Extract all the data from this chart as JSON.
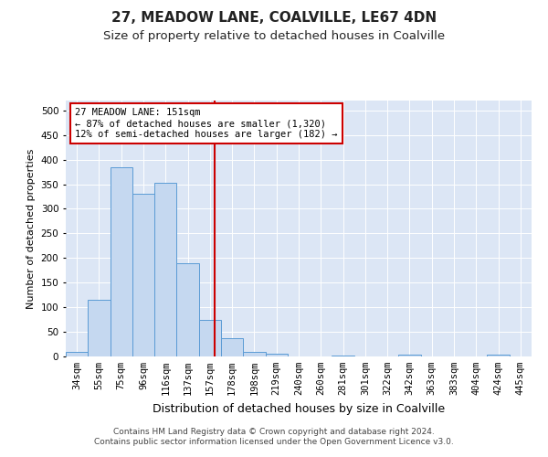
{
  "title1": "27, MEADOW LANE, COALVILLE, LE67 4DN",
  "title2": "Size of property relative to detached houses in Coalville",
  "xlabel": "Distribution of detached houses by size in Coalville",
  "ylabel": "Number of detached properties",
  "footer1": "Contains HM Land Registry data © Crown copyright and database right 2024.",
  "footer2": "Contains public sector information licensed under the Open Government Licence v3.0.",
  "annotation_line1": "27 MEADOW LANE: 151sqm",
  "annotation_line2": "← 87% of detached houses are smaller (1,320)",
  "annotation_line3": "12% of semi-detached houses are larger (182) →",
  "categories": [
    "34sqm",
    "55sqm",
    "75sqm",
    "96sqm",
    "116sqm",
    "137sqm",
    "157sqm",
    "178sqm",
    "198sqm",
    "219sqm",
    "240sqm",
    "260sqm",
    "281sqm",
    "301sqm",
    "322sqm",
    "342sqm",
    "363sqm",
    "383sqm",
    "404sqm",
    "424sqm",
    "445sqm"
  ],
  "values": [
    10,
    115,
    385,
    330,
    352,
    190,
    75,
    37,
    10,
    6,
    0,
    0,
    1,
    0,
    0,
    4,
    0,
    0,
    0,
    4,
    0
  ],
  "bar_color": "#c5d8f0",
  "bar_edge_color": "#5b9bd5",
  "vline_color": "#cc0000",
  "vline_index_float": 6.2,
  "annotation_box_color": "#ffffff",
  "annotation_box_edge": "#cc0000",
  "background_color": "#dce6f5",
  "ylim": [
    0,
    520
  ],
  "yticks": [
    0,
    50,
    100,
    150,
    200,
    250,
    300,
    350,
    400,
    450,
    500
  ],
  "title1_fontsize": 11,
  "title2_fontsize": 9.5,
  "xlabel_fontsize": 9,
  "ylabel_fontsize": 8,
  "tick_fontsize": 7.5,
  "annotation_fontsize": 7.5,
  "footer_fontsize": 6.5
}
